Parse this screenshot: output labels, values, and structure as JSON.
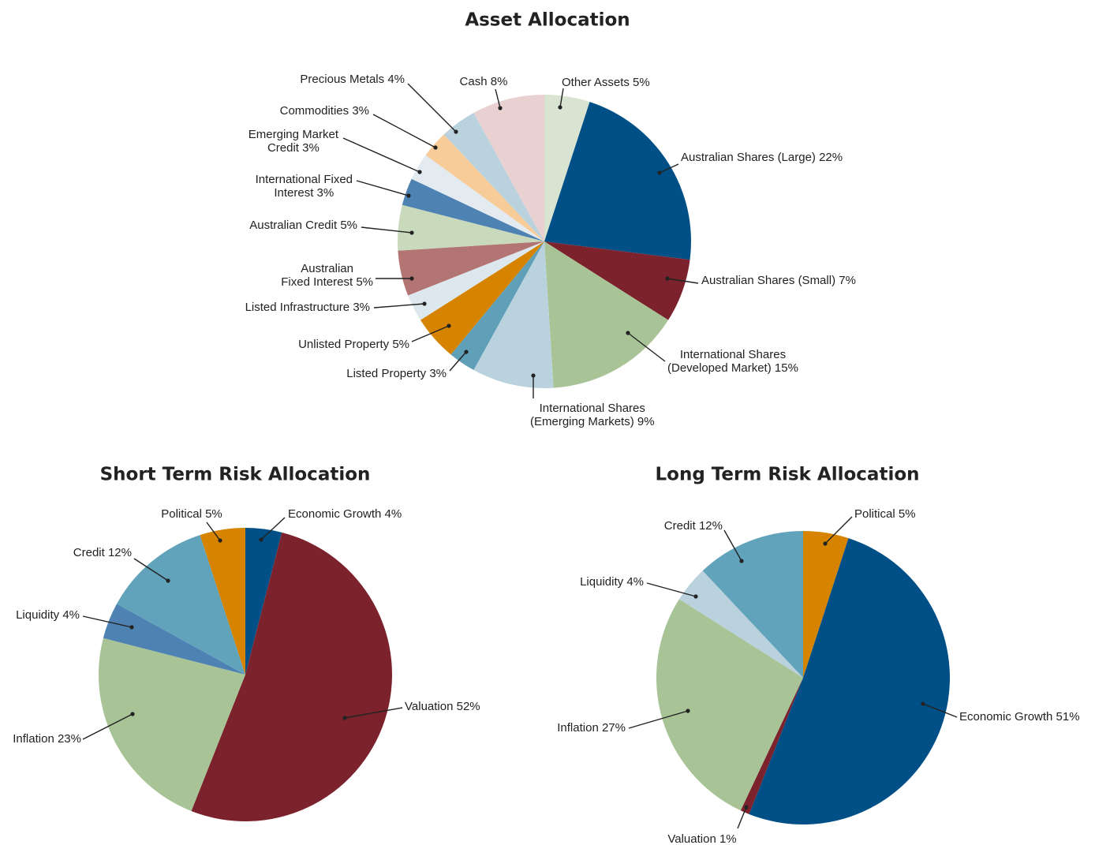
{
  "chart_data": [
    {
      "type": "pie",
      "title": "Asset Allocation",
      "categories": [
        "Other Assets",
        "Australian Shares (Large)",
        "Australian Shares (Small)",
        "International Shares\n(Developed Market)",
        "International Shares\n(Emerging Markets)",
        "Listed Property",
        "Unlisted Property",
        "Listed Infrastructure",
        "Australian\nFixed Interest",
        "Australian Credit",
        "International Fixed\nInterest",
        "Emerging Market\nCredit",
        "Commodities",
        "Precious Metals",
        "Cash"
      ],
      "values": [
        5,
        22,
        7,
        15,
        9,
        3,
        5,
        3,
        5,
        5,
        3,
        3,
        3,
        4,
        8
      ],
      "value_labels": [
        "5%",
        "22%",
        "7%",
        "15%",
        "9%",
        "3%",
        "5%",
        "3%",
        "5%",
        "5%",
        "3%",
        "3%",
        "3%",
        "4%",
        "8%"
      ],
      "colors": [
        "#d9e3d1",
        "#005087",
        "#7b222d",
        "#a8c396",
        "#bad2de",
        "#5f9fb8",
        "#d68400",
        "#dde8ee",
        "#b37574",
        "#c9d9bc",
        "#4e82b2",
        "#e3ebf1",
        "#f8cc98",
        "#bad2de",
        "#e9d1d2"
      ]
    },
    {
      "type": "pie",
      "title": "Short Term Risk Allocation",
      "categories": [
        "Economic Growth",
        "Valuation",
        "Inflation",
        "Liquidity",
        "Credit",
        "Political"
      ],
      "values": [
        4,
        52,
        23,
        4,
        12,
        5
      ],
      "value_labels": [
        "4%",
        "52%",
        "23%",
        "4%",
        "12%",
        "5%"
      ],
      "colors": [
        "#005087",
        "#7b222d",
        "#a8c396",
        "#4e82b2",
        "#62a3bc",
        "#d68400"
      ]
    },
    {
      "type": "pie",
      "title": "Long Term Risk Allocation",
      "categories": [
        "Political",
        "Economic Growth",
        "Valuation",
        "Inflation",
        "Liquidity",
        "Credit"
      ],
      "values": [
        5,
        51,
        1,
        27,
        4,
        12
      ],
      "value_labels": [
        "5%",
        "51%",
        "1%",
        "27%",
        "4%",
        "12%"
      ],
      "colors": [
        "#d68400",
        "#005087",
        "#7b222d",
        "#a8c396",
        "#bad2de",
        "#62a3bc"
      ]
    }
  ]
}
